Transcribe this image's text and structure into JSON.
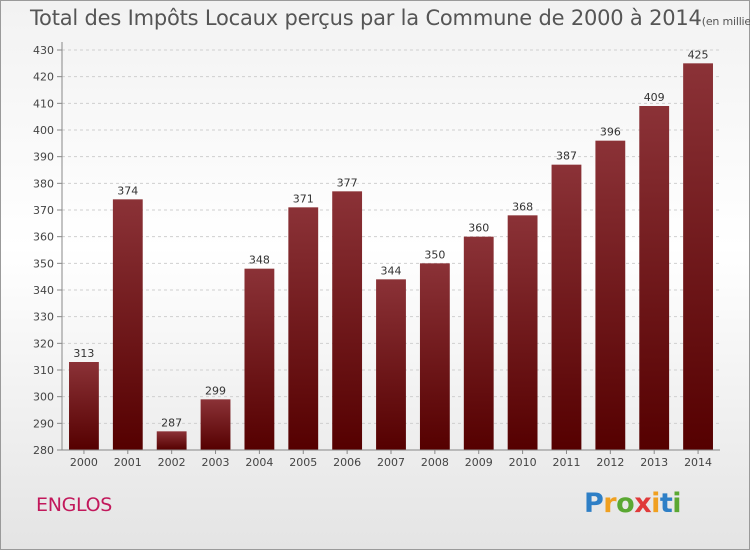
{
  "header": {
    "title": "Total des Impôts Locaux perçus par la Commune de 2000 à 2014",
    "unit": "(en milliers d'€)"
  },
  "footer": {
    "commune": "ENGLOS",
    "logo_text": "Proxiti"
  },
  "colors": {
    "bar_top": "#8b3237",
    "bar_bottom": "#550000",
    "commune_text": "#c2185b",
    "logo_letters": [
      "#2e7fc6",
      "#f0a020",
      "#5aa832",
      "#e03a3a",
      "#f0a020",
      "#2e7fc6",
      "#5aa832"
    ]
  },
  "chart_data": {
    "type": "bar",
    "categories": [
      "2000",
      "2001",
      "2002",
      "2003",
      "2004",
      "2005",
      "2006",
      "2007",
      "2008",
      "2009",
      "2010",
      "2011",
      "2012",
      "2013",
      "2014"
    ],
    "values": [
      313,
      374,
      287,
      299,
      348,
      371,
      377,
      344,
      350,
      360,
      368,
      387,
      396,
      409,
      425
    ],
    "yticks": [
      280,
      290,
      300,
      310,
      320,
      330,
      340,
      350,
      360,
      370,
      380,
      390,
      400,
      410,
      420,
      430
    ],
    "ylim": [
      280,
      430
    ],
    "grid": true,
    "data_labels": true
  }
}
